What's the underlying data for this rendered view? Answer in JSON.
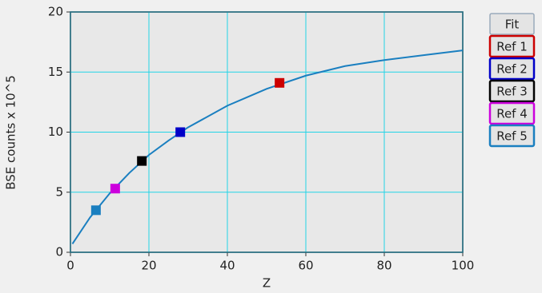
{
  "chart_data": {
    "type": "scatter",
    "xlabel": "Z",
    "ylabel": "BSE counts x 10^5",
    "xlim": [
      0,
      100
    ],
    "ylim": [
      0,
      20
    ],
    "xticks": [
      0,
      20,
      40,
      60,
      80,
      100
    ],
    "yticks": [
      0,
      5,
      10,
      15,
      20
    ],
    "grid": true,
    "legend": "right",
    "series": [
      {
        "name": "Fit",
        "color": "#1a7fc0",
        "mode": "line",
        "x": [
          0.5,
          5,
          10,
          15,
          20,
          25,
          30,
          40,
          50,
          60,
          70,
          80,
          90,
          100
        ],
        "values": [
          0.7,
          2.9,
          4.9,
          6.6,
          8.1,
          9.3,
          10.4,
          12.2,
          13.6,
          14.7,
          15.5,
          16.0,
          16.4,
          16.8
        ]
      },
      {
        "name": "Ref 1",
        "color": "#cc0000",
        "mode": "marker",
        "x": [
          53.3
        ],
        "values": [
          14.1
        ]
      },
      {
        "name": "Ref 2",
        "color": "#0000c8",
        "mode": "marker",
        "x": [
          28
        ],
        "values": [
          10.0
        ]
      },
      {
        "name": "Ref 3",
        "color": "#000000",
        "mode": "marker",
        "x": [
          18.2
        ],
        "values": [
          7.6
        ]
      },
      {
        "name": "Ref 4",
        "color": "#cc00dd",
        "mode": "marker",
        "x": [
          11.4
        ],
        "values": [
          5.3
        ]
      },
      {
        "name": "Ref 5",
        "color": "#1a7fc0",
        "mode": "marker",
        "x": [
          6.5
        ],
        "values": [
          3.5
        ]
      }
    ]
  }
}
